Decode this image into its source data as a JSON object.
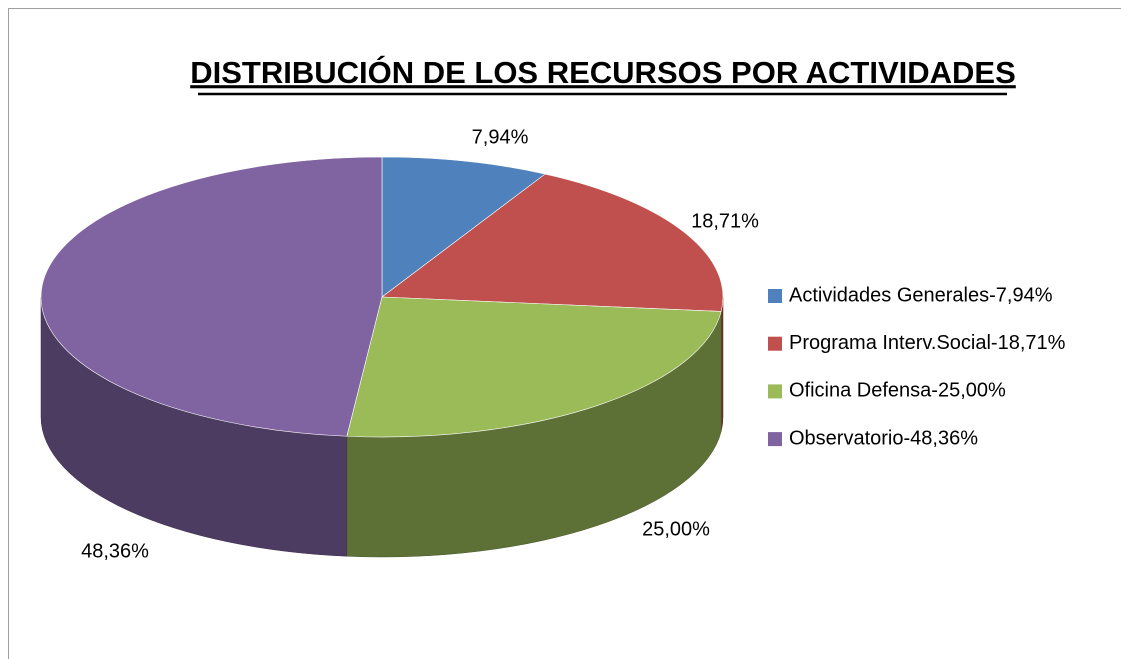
{
  "chart_data": {
    "type": "pie",
    "title": "DISTRIBUCIÓN DE LOS RECURSOS POR ACTIVIDADES",
    "categories": [
      "Actividades Generales-7,94%",
      "Programa Interv.Social-18,71%",
      "Oficina Defensa-25,00%",
      "Observatorio-48,36%"
    ],
    "values": [
      7.94,
      18.71,
      25.0,
      48.36
    ],
    "value_labels": [
      "7,94%",
      "18,71%",
      "25,00%",
      "48,36%"
    ],
    "colors": [
      "#4f81bd",
      "#c0504d",
      "#9bbb59",
      "#8064a2"
    ],
    "legend": "right"
  }
}
